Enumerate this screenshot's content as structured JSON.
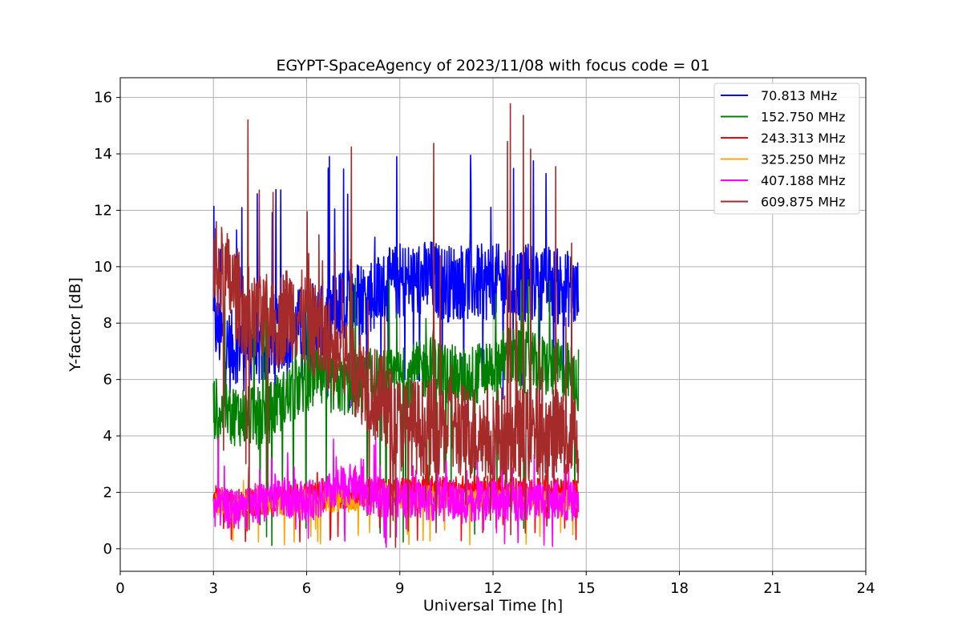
{
  "chart_data": {
    "type": "line",
    "title": "EGYPT-SpaceAgency of 2023/11/08 with focus code = 01",
    "xlabel": "Universal Time [h]",
    "ylabel": "Y-factor [dB]",
    "xlim": [
      0,
      24
    ],
    "ylim": [
      -0.8,
      16.7
    ],
    "xticks": [
      0,
      3,
      6,
      9,
      12,
      15,
      18,
      21,
      24
    ],
    "yticks": [
      0,
      2,
      4,
      6,
      8,
      10,
      12,
      14,
      16
    ],
    "grid": true,
    "legend_position": "top-right",
    "series": [
      {
        "name": " 70.813 MHz",
        "color": "#0000ff",
        "x": [
          3.0,
          3.5,
          4.0,
          4.5,
          5.0,
          5.5,
          6.0,
          6.5,
          7.0,
          7.5,
          8.0,
          8.5,
          9.0,
          9.5,
          10.0,
          10.5,
          11.0,
          11.5,
          12.0,
          12.5,
          13.0,
          13.5,
          14.0,
          14.5,
          14.75
        ],
        "values": [
          8.0,
          7.0,
          7.5,
          7.0,
          7.5,
          7.8,
          8.0,
          8.2,
          8.5,
          8.8,
          9.0,
          9.2,
          9.5,
          9.5,
          9.6,
          9.4,
          9.5,
          9.4,
          9.5,
          9.3,
          9.4,
          9.5,
          9.3,
          9.2,
          9.0
        ],
        "peak_max": 14.1,
        "min": 5.0
      },
      {
        "name": "152.750 MHz",
        "color": "#008000",
        "x": [
          3.0,
          3.5,
          4.0,
          4.5,
          5.0,
          5.5,
          6.0,
          6.5,
          7.0,
          7.5,
          8.0,
          8.5,
          9.0,
          9.5,
          10.0,
          10.5,
          11.0,
          11.5,
          12.0,
          12.5,
          13.0,
          13.5,
          14.0,
          14.5,
          14.75
        ],
        "values": [
          5.0,
          4.8,
          4.7,
          4.6,
          5.0,
          5.5,
          6.0,
          6.0,
          5.8,
          5.8,
          6.0,
          6.0,
          6.0,
          6.2,
          6.5,
          6.2,
          6.0,
          6.2,
          6.5,
          6.8,
          6.6,
          6.5,
          6.4,
          6.2,
          5.5
        ],
        "peak_max": 10.2,
        "min": 0.0
      },
      {
        "name": "243.313 MHz",
        "color": "#ff0000",
        "x": [
          3.0,
          3.5,
          4.0,
          4.5,
          5.0,
          5.5,
          6.0,
          6.5,
          7.0,
          7.5,
          8.0,
          8.5,
          9.0,
          9.5,
          10.0,
          10.5,
          11.0,
          11.5,
          12.0,
          12.5,
          13.0,
          13.5,
          14.0,
          14.5,
          14.75
        ],
        "values": [
          1.8,
          1.7,
          1.6,
          1.7,
          1.7,
          1.8,
          1.8,
          1.9,
          1.9,
          1.9,
          2.0,
          2.0,
          2.1,
          2.1,
          2.1,
          2.1,
          2.1,
          2.1,
          2.1,
          2.1,
          2.0,
          2.0,
          2.0,
          2.0,
          1.9
        ],
        "peak_max": 3.0,
        "min": 0.1
      },
      {
        "name": "325.250 MHz",
        "color": "#ffa500",
        "x": [
          3.0,
          3.5,
          4.0,
          4.5,
          5.0,
          5.5,
          6.0,
          6.5,
          7.0,
          7.5,
          8.0,
          8.5,
          9.0,
          9.5,
          10.0,
          10.5,
          11.0,
          11.5,
          12.0,
          12.5,
          13.0,
          13.5,
          14.0,
          14.5,
          14.75
        ],
        "values": [
          1.6,
          1.5,
          1.5,
          1.5,
          1.6,
          1.6,
          1.7,
          1.7,
          1.7,
          1.7,
          1.8,
          1.8,
          1.8,
          1.8,
          1.9,
          1.8,
          1.8,
          1.8,
          1.8,
          1.8,
          1.8,
          1.8,
          1.7,
          1.7,
          1.7
        ],
        "peak_max": 2.5,
        "min": 0.1
      },
      {
        "name": "407.188 MHz",
        "color": "#ff00ff",
        "x": [
          3.0,
          3.5,
          4.0,
          4.5,
          5.0,
          5.5,
          6.0,
          6.5,
          7.0,
          7.5,
          8.0,
          8.5,
          9.0,
          9.5,
          10.0,
          10.5,
          11.0,
          11.5,
          12.0,
          12.5,
          13.0,
          13.5,
          14.0,
          14.5,
          14.75
        ],
        "values": [
          1.5,
          1.4,
          1.4,
          1.6,
          1.8,
          1.8,
          1.7,
          1.8,
          2.2,
          2.3,
          1.9,
          1.8,
          1.8,
          1.8,
          1.7,
          1.7,
          1.6,
          1.7,
          1.7,
          1.7,
          1.7,
          1.8,
          1.8,
          1.7,
          1.6
        ],
        "peak_max": 4.1,
        "min": 0.0
      },
      {
        "name": "609.875 MHz",
        "color": "#a52a2a",
        "x": [
          3.0,
          3.5,
          4.0,
          4.5,
          5.0,
          5.5,
          6.0,
          6.5,
          7.0,
          7.5,
          8.0,
          8.5,
          9.0,
          9.5,
          10.0,
          10.5,
          11.0,
          11.5,
          12.0,
          12.5,
          13.0,
          13.5,
          14.0,
          14.5,
          14.75
        ],
        "values": [
          10.0,
          9.5,
          8.5,
          8.0,
          8.0,
          8.5,
          8.0,
          7.5,
          7.0,
          6.5,
          5.8,
          5.0,
          4.4,
          4.3,
          4.3,
          4.3,
          4.2,
          4.1,
          4.1,
          4.0,
          4.0,
          4.0,
          4.0,
          4.0,
          4.0
        ],
        "peak_max": 15.9,
        "min": 0.0
      }
    ]
  }
}
